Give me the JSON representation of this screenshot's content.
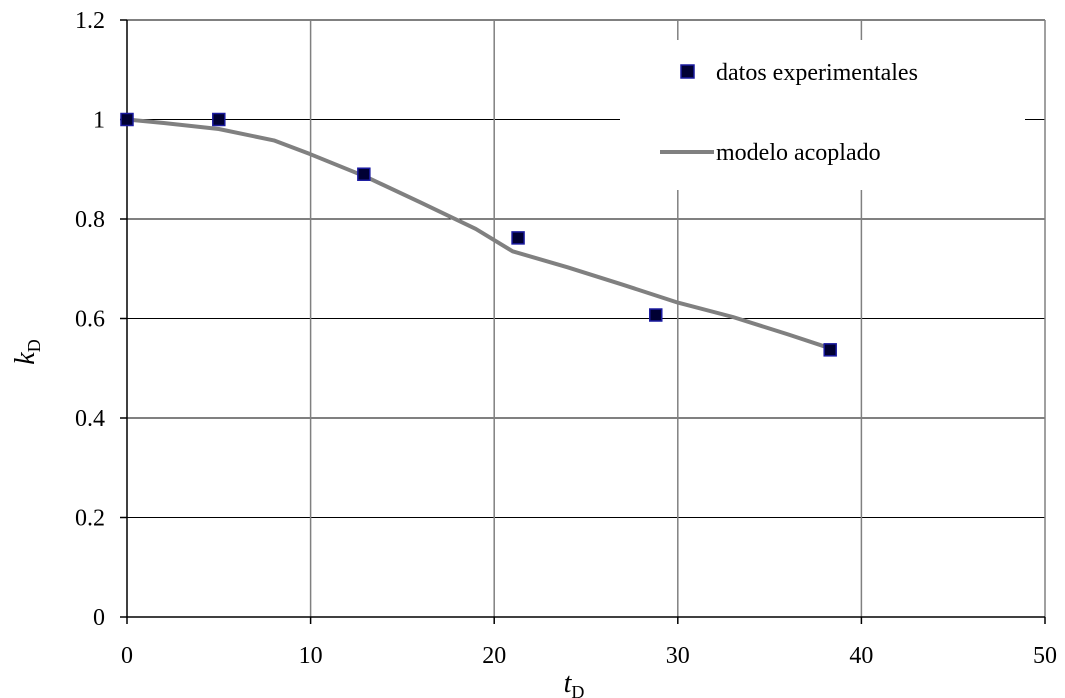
{
  "chart_data": {
    "type": "line",
    "title": "",
    "xlabel": {
      "main": "t",
      "sub": "D"
    },
    "ylabel": {
      "main": "k",
      "sub": "D"
    },
    "xlim": [
      0,
      50
    ],
    "ylim": [
      0,
      1.2
    ],
    "xticks": [
      0,
      10,
      20,
      30,
      40,
      50
    ],
    "yticks": [
      0,
      0.2,
      0.4,
      0.6,
      0.8,
      1,
      1.2
    ],
    "xtick_labels": [
      "0",
      "10",
      "20",
      "30",
      "40",
      "50"
    ],
    "ytick_labels": [
      "0",
      "0.2",
      "0.4",
      "0.6",
      "0.8",
      "1",
      "1.2"
    ],
    "grid": true,
    "legend_position": "top-right",
    "series": [
      {
        "name": "datos experimentales",
        "kind": "scatter",
        "marker": "square",
        "color": "#000033",
        "edge_color": "#1a1aa0",
        "x": [
          0,
          5,
          12.9,
          21.3,
          28.8,
          38.3
        ],
        "y": [
          1.0,
          1.0,
          0.89,
          0.762,
          0.607,
          0.537
        ]
      },
      {
        "name": "modelo acoplado",
        "kind": "line",
        "color": "#808080",
        "x": [
          0,
          2,
          5,
          8,
          10,
          13,
          16,
          19,
          21,
          24,
          27,
          30,
          33,
          36,
          38.3
        ],
        "y": [
          1.0,
          0.993,
          0.981,
          0.958,
          0.93,
          0.885,
          0.833,
          0.78,
          0.735,
          0.703,
          0.668,
          0.632,
          0.603,
          0.568,
          0.54
        ]
      }
    ]
  }
}
